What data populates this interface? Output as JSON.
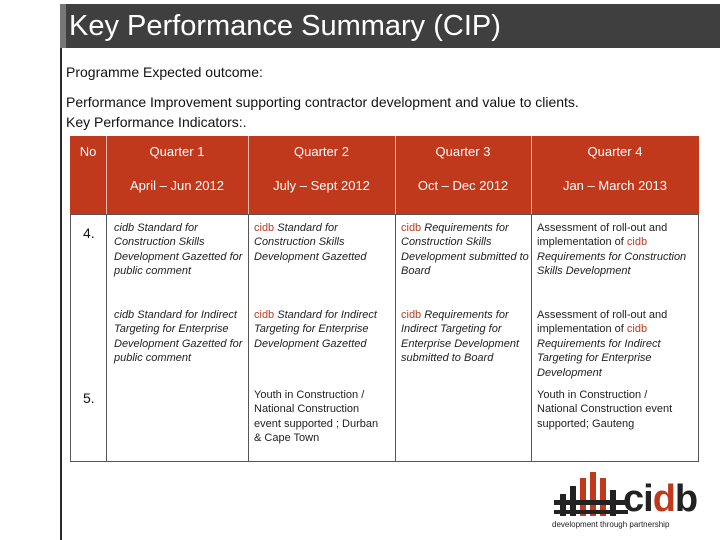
{
  "title": "Key Performance Summary (CIP)",
  "intro": {
    "outcome_label": "Programme Expected outcome:",
    "outcome_text": "Performance Improvement supporting contractor development and value to clients.",
    "kpi_label": "Key Performance Indicators:."
  },
  "table": {
    "headers": {
      "no": "No",
      "quarters": [
        "Quarter 1",
        "Quarter 2",
        "Quarter 3",
        "Quarter 4"
      ],
      "periods": [
        "April – Jun 2012",
        "July – Sept 2012",
        "Oct – Dec 2012",
        "Jan  – March 2013"
      ]
    },
    "rows": [
      {
        "no": "4.",
        "q1a_pre": "cidb",
        "q1a_post": " Standard for Construction Skills Development Gazetted for public comment",
        "q2a_pre": "cidb",
        "q2a_post": " Standard for Construction Skills Development Gazetted",
        "q3a_pre": "cidb",
        "q3a_post": " Requirements for Construction Skills Development submitted to Board",
        "q4a_pre": "Assessment of roll-out and implementation of ",
        "q4a_brand": "cidb",
        "q4a_post": " Requirements for Construction Skills Development",
        "q1b_pre": "cidb",
        "q1b_post": " Standard for Indirect Targeting for Enterprise Development  Gazetted for public comment",
        "q2b_pre": "cidb",
        "q2b_post": " Standard for Indirect Targeting for Enterprise Development  Gazetted",
        "q3b_pre": "cidb",
        "q3b_post": " Requirements for Indirect Targeting for Enterprise Development submitted to Board",
        "q4b_pre": "Assessment of roll-out and implementation of ",
        "q4b_brand": "cidb",
        "q4b_post": " Requirements for Indirect Targeting for Enterprise Development"
      },
      {
        "no": "5.",
        "q2": "Youth in Construction / National Construction event supported ; Durban & Cape Town",
        "q4": "Youth in Construction / National Construction event supported; Gauteng"
      }
    ]
  },
  "logo": {
    "word_pre": "ci",
    "word_accent": "d",
    "word_post": "b",
    "tagline": "development through partnership"
  },
  "colors": {
    "header_bg": "#c1391d",
    "title_bg": "#3f3f3f",
    "accent": "#c1391d"
  }
}
